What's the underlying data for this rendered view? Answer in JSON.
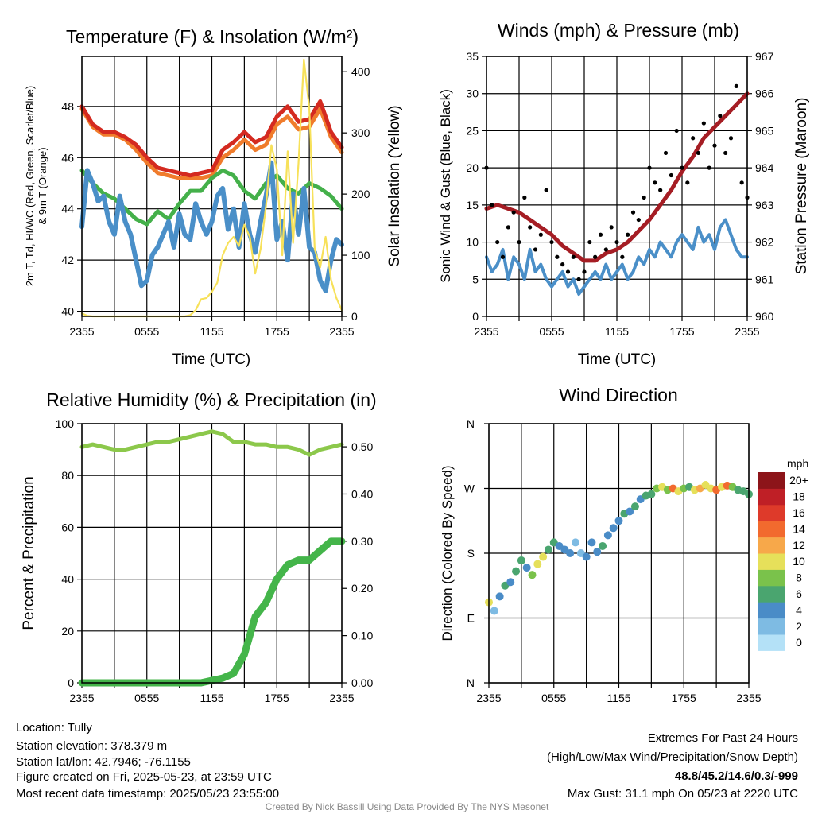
{
  "chart_data": [
    {
      "type": "line",
      "title": "Temperature (F) & Insolation (W/m²)",
      "xlabel": "Time (UTC)",
      "ylabel_line1": "2m T, Td, HI/WC (Red, Green, Scarlet/Blue)",
      "ylabel_line2": "& 9m T (Orange)",
      "ylabel_right": "Solar Insolation (Yellow)",
      "xticks": [
        "2355",
        "0555",
        "1155",
        "1755",
        "2355"
      ],
      "xlim_hours": [
        0,
        24
      ],
      "ylim": [
        39.8,
        49.95
      ],
      "yticks": [
        40,
        42,
        44,
        46,
        48
      ],
      "ylim_right": [
        0,
        425
      ],
      "yticks_right": [
        0,
        100,
        200,
        300,
        400
      ],
      "series": [
        {
          "name": "2m T",
          "color": "#d42a20",
          "axis": "left",
          "step_hours": 1,
          "values": [
            48.0,
            47.3,
            47.0,
            47.0,
            46.8,
            46.5,
            46.0,
            45.6,
            45.5,
            45.4,
            45.3,
            45.4,
            45.5,
            46.3,
            46.6,
            47.0,
            46.6,
            46.8,
            47.6,
            48.0,
            47.4,
            47.5,
            48.2,
            47.0,
            46.4
          ]
        },
        {
          "name": "9m T",
          "color": "#f07c2c",
          "axis": "left",
          "step_hours": 1,
          "values": [
            47.9,
            47.2,
            46.9,
            46.9,
            46.7,
            46.3,
            45.8,
            45.4,
            45.3,
            45.2,
            45.2,
            45.2,
            45.3,
            46.0,
            46.3,
            46.7,
            46.3,
            46.5,
            47.3,
            47.6,
            47.1,
            47.2,
            47.9,
            46.8,
            46.2
          ]
        },
        {
          "name": "Td",
          "color": "#44b04a",
          "axis": "left",
          "step_hours": 1,
          "values": [
            45.5,
            45.0,
            44.6,
            44.4,
            44.0,
            43.6,
            43.4,
            43.9,
            43.6,
            44.2,
            44.7,
            44.7,
            45.2,
            45.5,
            45.3,
            44.7,
            44.4,
            45.0,
            45.3,
            44.8,
            44.6,
            45.0,
            44.8,
            44.5,
            44.0
          ]
        },
        {
          "name": "HI/WC",
          "color": "#4a8fc8",
          "axis": "left",
          "step_hours": 0.5,
          "values": [
            43.3,
            45.5,
            45.0,
            44.3,
            44.5,
            43.5,
            43.0,
            44.5,
            43.5,
            43.0,
            42.0,
            41.0,
            41.2,
            42.2,
            42.5,
            43.0,
            43.5,
            42.5,
            43.8,
            43.0,
            42.8,
            44.2,
            43.5,
            43.0,
            43.5,
            44.5,
            44.8,
            43.2,
            44.0,
            42.5,
            44.2,
            43.0,
            42.3,
            43.5,
            44.5,
            45.8,
            42.8,
            43.5,
            42.0,
            44.6,
            43.0,
            44.8,
            42.5,
            42.3,
            41.2,
            40.8,
            42.0,
            42.8,
            42.6
          ]
        },
        {
          "name": "Solar Insolation",
          "color": "#f7e15a",
          "axis": "right",
          "step_hours": 0.5,
          "values": [
            5,
            1,
            0,
            0,
            0,
            0,
            0,
            0,
            0,
            0,
            0,
            0,
            0,
            0,
            0,
            0,
            0,
            0,
            0,
            0,
            2,
            10,
            28,
            30,
            40,
            55,
            100,
            120,
            130,
            115,
            150,
            130,
            70,
            110,
            180,
            280,
            240,
            100,
            270,
            120,
            250,
            420,
            340,
            110,
            80,
            130,
            60,
            30,
            10
          ]
        }
      ]
    },
    {
      "type": "line",
      "title": "Winds (mph) & Pressure (mb)",
      "xlabel": "Time (UTC)",
      "ylabel": "Sonic Wind & Gust (Blue, Black)",
      "ylabel_right": "Station Pressure (Maroon)",
      "xticks": [
        "2355",
        "0555",
        "1155",
        "1755",
        "2355"
      ],
      "ylim": [
        0,
        35
      ],
      "yticks": [
        0,
        5,
        10,
        15,
        20,
        25,
        30,
        35
      ],
      "ylim_right": [
        960,
        967
      ],
      "yticks_right": [
        960,
        961,
        962,
        963,
        964,
        965,
        966,
        967
      ],
      "series": [
        {
          "name": "Sonic Wind",
          "color": "#4a8fc8",
          "axis": "left",
          "step_hours": 0.5,
          "values": [
            8,
            6,
            7,
            9,
            5,
            8,
            7,
            5,
            9,
            6,
            7,
            5,
            4,
            5,
            6,
            4,
            5,
            3,
            4,
            5,
            6,
            5,
            7,
            5,
            6,
            7,
            5,
            6,
            8,
            7,
            9,
            8,
            10,
            9,
            8,
            10,
            11,
            10,
            9,
            12,
            10,
            11,
            9,
            12,
            13,
            11,
            9,
            8,
            8
          ]
        },
        {
          "name": "Gust",
          "color": "#000000",
          "axis": "left",
          "step_hours": 0.5,
          "style": "points",
          "values": [
            20,
            15,
            10,
            8,
            12,
            14,
            10,
            16,
            12,
            9,
            11,
            17,
            10,
            8,
            7,
            6,
            8,
            5,
            6,
            10,
            8,
            11,
            9,
            12,
            10,
            8,
            11,
            14,
            13,
            16,
            20,
            18,
            17,
            22,
            19,
            25,
            20,
            18,
            24,
            22,
            26,
            20,
            23,
            27,
            22,
            24,
            31,
            18,
            16
          ]
        },
        {
          "name": "Station Pressure",
          "color": "#a51d24",
          "axis": "right",
          "step_hours": 1,
          "values": [
            962.9,
            963.0,
            962.9,
            962.8,
            962.6,
            962.4,
            962.2,
            961.9,
            961.7,
            961.5,
            961.5,
            961.7,
            961.8,
            962.0,
            962.3,
            962.6,
            963.0,
            963.4,
            963.9,
            964.3,
            964.8,
            965.1,
            965.4,
            965.7,
            966.0
          ]
        }
      ]
    },
    {
      "type": "line",
      "title": "Relative Humidity (%) & Precipitation (in)",
      "ylabel": "Percent & Precipitation",
      "xticks": [
        "2355",
        "0555",
        "1155",
        "1755",
        "2355"
      ],
      "ylim": [
        0,
        100
      ],
      "yticks": [
        0,
        20,
        40,
        60,
        80,
        100
      ],
      "ylim_right": [
        0,
        0.549
      ],
      "yticks_right": [
        "0.00",
        "0.10",
        "0.20",
        "0.30",
        "0.40",
        "0.50"
      ],
      "series": [
        {
          "name": "Relative Humidity",
          "color": "#8cc84b",
          "axis": "left",
          "step_hours": 1,
          "values": [
            91,
            92,
            91,
            90,
            90,
            91,
            92,
            93,
            93,
            94,
            95,
            96,
            97,
            96,
            93,
            93,
            92,
            92,
            91,
            91,
            90,
            88,
            90,
            91,
            92
          ]
        },
        {
          "name": "Precipitation",
          "color": "#44b54a",
          "axis": "right",
          "step_hours": 1,
          "values": [
            0,
            0,
            0,
            0,
            0,
            0,
            0,
            0,
            0,
            0,
            0,
            0,
            0.005,
            0.01,
            0.02,
            0.06,
            0.14,
            0.17,
            0.22,
            0.25,
            0.26,
            0.26,
            0.28,
            0.3,
            0.3
          ]
        }
      ]
    },
    {
      "type": "scatter",
      "title": "Wind Direction",
      "ylabel": "Direction (Colored By Speed)",
      "xticks": [
        "2355",
        "0555",
        "1155",
        "1755",
        "2355"
      ],
      "yticks": [
        {
          "label": "N",
          "deg": 0
        },
        {
          "label": "E",
          "deg": 90
        },
        {
          "label": "S",
          "deg": 180
        },
        {
          "label": "W",
          "deg": 270
        },
        {
          "label": "N",
          "deg": 360
        }
      ],
      "step_hours": 0.5,
      "direction_deg": [
        112,
        100,
        120,
        135,
        140,
        155,
        170,
        160,
        150,
        165,
        175,
        185,
        195,
        190,
        185,
        180,
        195,
        180,
        175,
        195,
        182,
        190,
        205,
        215,
        225,
        235,
        238,
        245,
        255,
        260,
        262,
        270,
        272,
        268,
        270,
        266,
        270,
        272,
        268,
        270,
        275,
        270,
        268,
        272,
        274,
        272,
        268,
        266,
        262
      ],
      "speed_mph": [
        10,
        3,
        5,
        6,
        4,
        7,
        6,
        4,
        8,
        10,
        10,
        6,
        6,
        4,
        4,
        4,
        3,
        2,
        4,
        4,
        4,
        7,
        4,
        4,
        4,
        6,
        5,
        6,
        4,
        6,
        6,
        8,
        10,
        8,
        14,
        10,
        8,
        6,
        10,
        12,
        10,
        10,
        14,
        10,
        14,
        8,
        7,
        6,
        6
      ],
      "colorbar": {
        "title": "mph",
        "labels": [
          "0",
          "2",
          "4",
          "6",
          "8",
          "10",
          "12",
          "14",
          "16",
          "18",
          "20+"
        ],
        "colors": [
          "#b4e1f7",
          "#7ebbe3",
          "#4a8cc7",
          "#4aa56f",
          "#7ac24b",
          "#e6e05a",
          "#f7a84a",
          "#f26a2e",
          "#de3a2a",
          "#bf1f26",
          "#8c1419"
        ]
      }
    }
  ],
  "footer": {
    "location": "Location: Tully",
    "elevation": "Station elevation: 378.379 m",
    "latlon": "Station lat/lon: 42.7946; -76.1155",
    "created": "Figure created on Fri, 2025-05-23, at 23:59 UTC",
    "recent": "Most recent data timestamp: 2025/05/23 23:55:00",
    "extremes_title": "Extremes For Past 24 Hours",
    "extremes_sub": "(High/Low/Max Wind/Precipitation/Snow Depth)",
    "extremes_values": "48.8/45.2/14.6/0.3/-999",
    "max_gust": "Max Gust: 31.1 mph On 05/23 at 2220 UTC",
    "credit": "Created By Nick Bassill Using Data Provided By The NYS Mesonet"
  },
  "colors": {
    "extremes": "#d42a20",
    "credit": "#888888"
  }
}
